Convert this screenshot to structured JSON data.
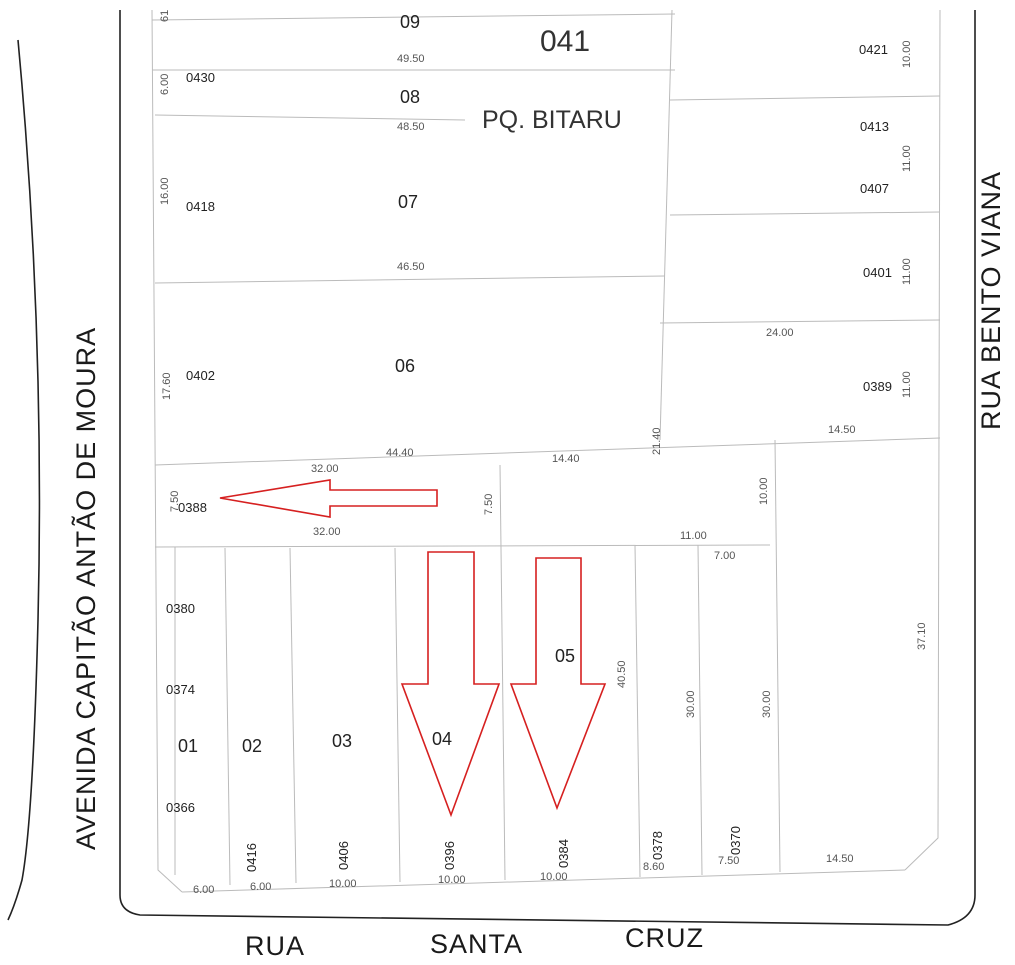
{
  "streets": {
    "avenida": "AVENIDA CAPITÃO ANTÃO DE MOURA",
    "rua_bento": "RUA BENTO VIANA",
    "rua_santa_cruz": [
      "RUA",
      "SANTA",
      "CRUZ"
    ]
  },
  "block": {
    "number": "041",
    "name": "PQ. BITARU"
  },
  "lots": [
    "09",
    "08",
    "07",
    "06",
    "05",
    "04",
    "03",
    "02",
    "01"
  ],
  "addresses_left": [
    "0430",
    "0418",
    "0402",
    "0388",
    "0380",
    "0374",
    "0366"
  ],
  "addresses_right": [
    "0421",
    "0413",
    "0407",
    "0401",
    "0389"
  ],
  "addresses_bottom": [
    "0416",
    "0406",
    "0396",
    "0384",
    "0378",
    "0370"
  ],
  "dimensions": {
    "top_left": "61",
    "d_49_50": "49.50",
    "d_48_50": "48.50",
    "d_46_50": "46.50",
    "d_44_40": "44.40",
    "d_32_00a": "32.00",
    "d_32_00b": "32.00",
    "d_14_40": "14.40",
    "d_21_40": "21.40",
    "d_24_00": "24.00",
    "d_14_50a": "14.50",
    "d_11_00a": "11.00",
    "d_7_00": "7.00",
    "d_10_00r": "10.00",
    "d_7_50a": "7.50",
    "d_7_50b": "7.50",
    "d_40_50": "40.50",
    "d_37_10": "37.10",
    "d_30_00a": "30.00",
    "d_30_00b": "30.00",
    "d_8_60": "8.60",
    "d_7_50c": "7.50",
    "d_14_50b": "14.50",
    "d_6_00a": "6.00",
    "d_6_00b": "6.00",
    "d_10_00a": "10.00",
    "d_10_00b": "10.00",
    "d_10_00c": "10.00",
    "l_6_00": "6.00",
    "l_16_00": "16.00",
    "l_17_60": "17.60",
    "l_7_50": "7.50",
    "r_10_00": "10.00",
    "r_11_00a": "11.00",
    "r_11_00b": "11.00",
    "r_11_00c": "11.00"
  },
  "colors": {
    "arrow": "#d62020",
    "outline": "#222222",
    "lines": "#bbbbbb"
  }
}
